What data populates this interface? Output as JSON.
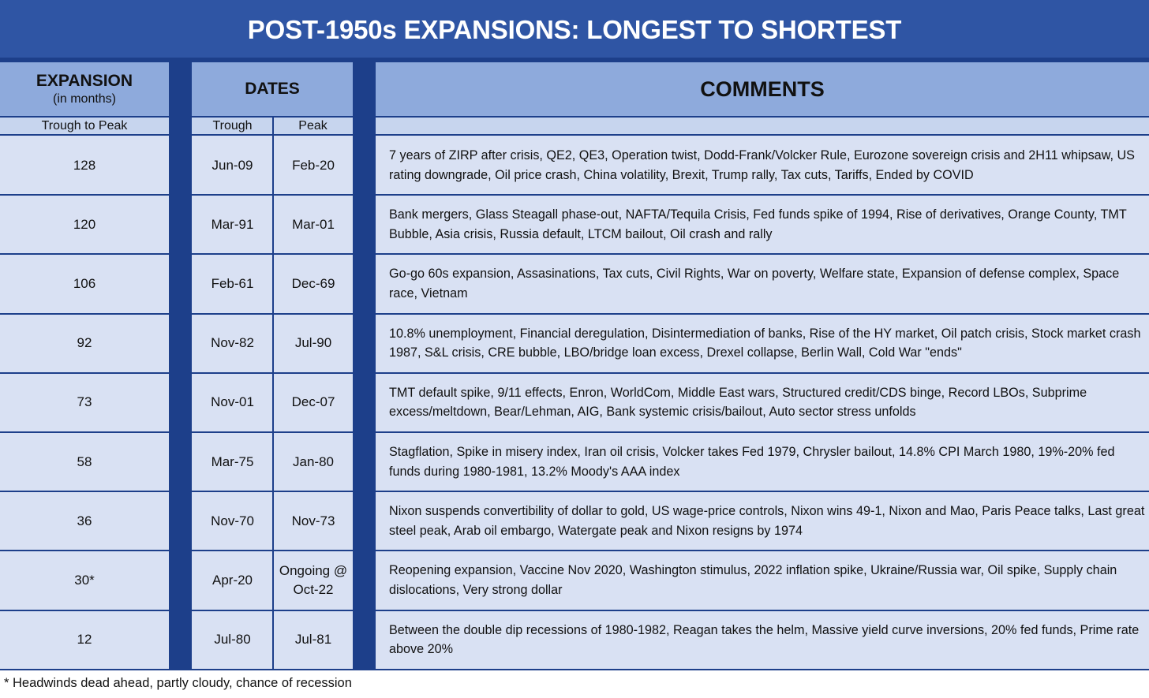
{
  "title": "POST-1950s EXPANSIONS: LONGEST TO SHORTEST",
  "headers": {
    "expansion": "EXPANSION",
    "expansion_unit": "(in months)",
    "expansion_sub": "Trough to Peak",
    "dates": "DATES",
    "trough": "Trough",
    "peak": "Peak",
    "comments": "COMMENTS"
  },
  "rows": [
    {
      "months": "128",
      "trough": "Jun-09",
      "peak": "Feb-20",
      "comment": "7 years of ZIRP after crisis, QE2, QE3, Operation twist, Dodd-Frank/Volcker Rule, Eurozone sovereign crisis and 2H11 whipsaw, US rating downgrade, Oil price crash, China volatility, Brexit, Trump rally, Tax cuts, Tariffs, Ended by COVID"
    },
    {
      "months": "120",
      "trough": "Mar-91",
      "peak": "Mar-01",
      "comment": "Bank mergers, Glass Steagall phase-out, NAFTA/Tequila Crisis, Fed funds spike of 1994, Rise of derivatives, Orange County, TMT Bubble, Asia crisis, Russia default, LTCM bailout, Oil crash and rally"
    },
    {
      "months": "106",
      "trough": "Feb-61",
      "peak": "Dec-69",
      "comment": "Go-go 60s expansion, Assasinations, Tax cuts, Civil Rights, War on poverty, Welfare state, Expansion of defense complex, Space race, Vietnam"
    },
    {
      "months": "92",
      "trough": "Nov-82",
      "peak": "Jul-90",
      "comment": "10.8% unemployment, Financial deregulation, Disintermediation of banks, Rise of the HY market, Oil patch crisis, Stock market crash 1987, S&L crisis, CRE bubble, LBO/bridge loan excess, Drexel collapse, Berlin Wall, Cold War \"ends\""
    },
    {
      "months": "73",
      "trough": "Nov-01",
      "peak": "Dec-07",
      "comment": "TMT default spike, 9/11 effects, Enron, WorldCom, Middle East wars, Structured credit/CDS binge, Record LBOs, Subprime excess/meltdown, Bear/Lehman, AIG, Bank systemic crisis/bailout, Auto sector stress unfolds"
    },
    {
      "months": "58",
      "trough": "Mar-75",
      "peak": "Jan-80",
      "comment": "Stagflation, Spike in misery index, Iran oil crisis, Volcker takes Fed 1979, Chrysler bailout, 14.8% CPI March 1980, 19%-20% fed funds during 1980-1981, 13.2% Moody's AAA index"
    },
    {
      "months": "36",
      "trough": "Nov-70",
      "peak": "Nov-73",
      "comment": "Nixon suspends convertibility of dollar to gold, US wage-price controls, Nixon wins 49-1, Nixon and Mao, Paris Peace talks, Last great steel peak, Arab oil embargo, Watergate peak and Nixon resigns by 1974"
    },
    {
      "months": "30*",
      "trough": "Apr-20",
      "peak": "Ongoing @ Oct-22",
      "comment": "Reopening expansion, Vaccine Nov 2020, Washington stimulus, 2022 inflation spike, Ukraine/Russia war, Oil spike, Supply chain dislocations, Very strong dollar"
    },
    {
      "months": "12",
      "trough": "Jul-80",
      "peak": "Jul-81",
      "comment": "Between the double dip recessions of 1980-1982, Reagan takes the helm, Massive yield curve inversions, 20% fed funds, Prime rate above 20%"
    }
  ],
  "footnote": "* Headwinds dead ahead, partly cloudy, chance of recession",
  "colors": {
    "banner": "#2f55a4",
    "border": "#1d3f8a",
    "header": "#8eaadc",
    "subheader": "#c7d5ee",
    "cell": "#d9e1f3"
  }
}
